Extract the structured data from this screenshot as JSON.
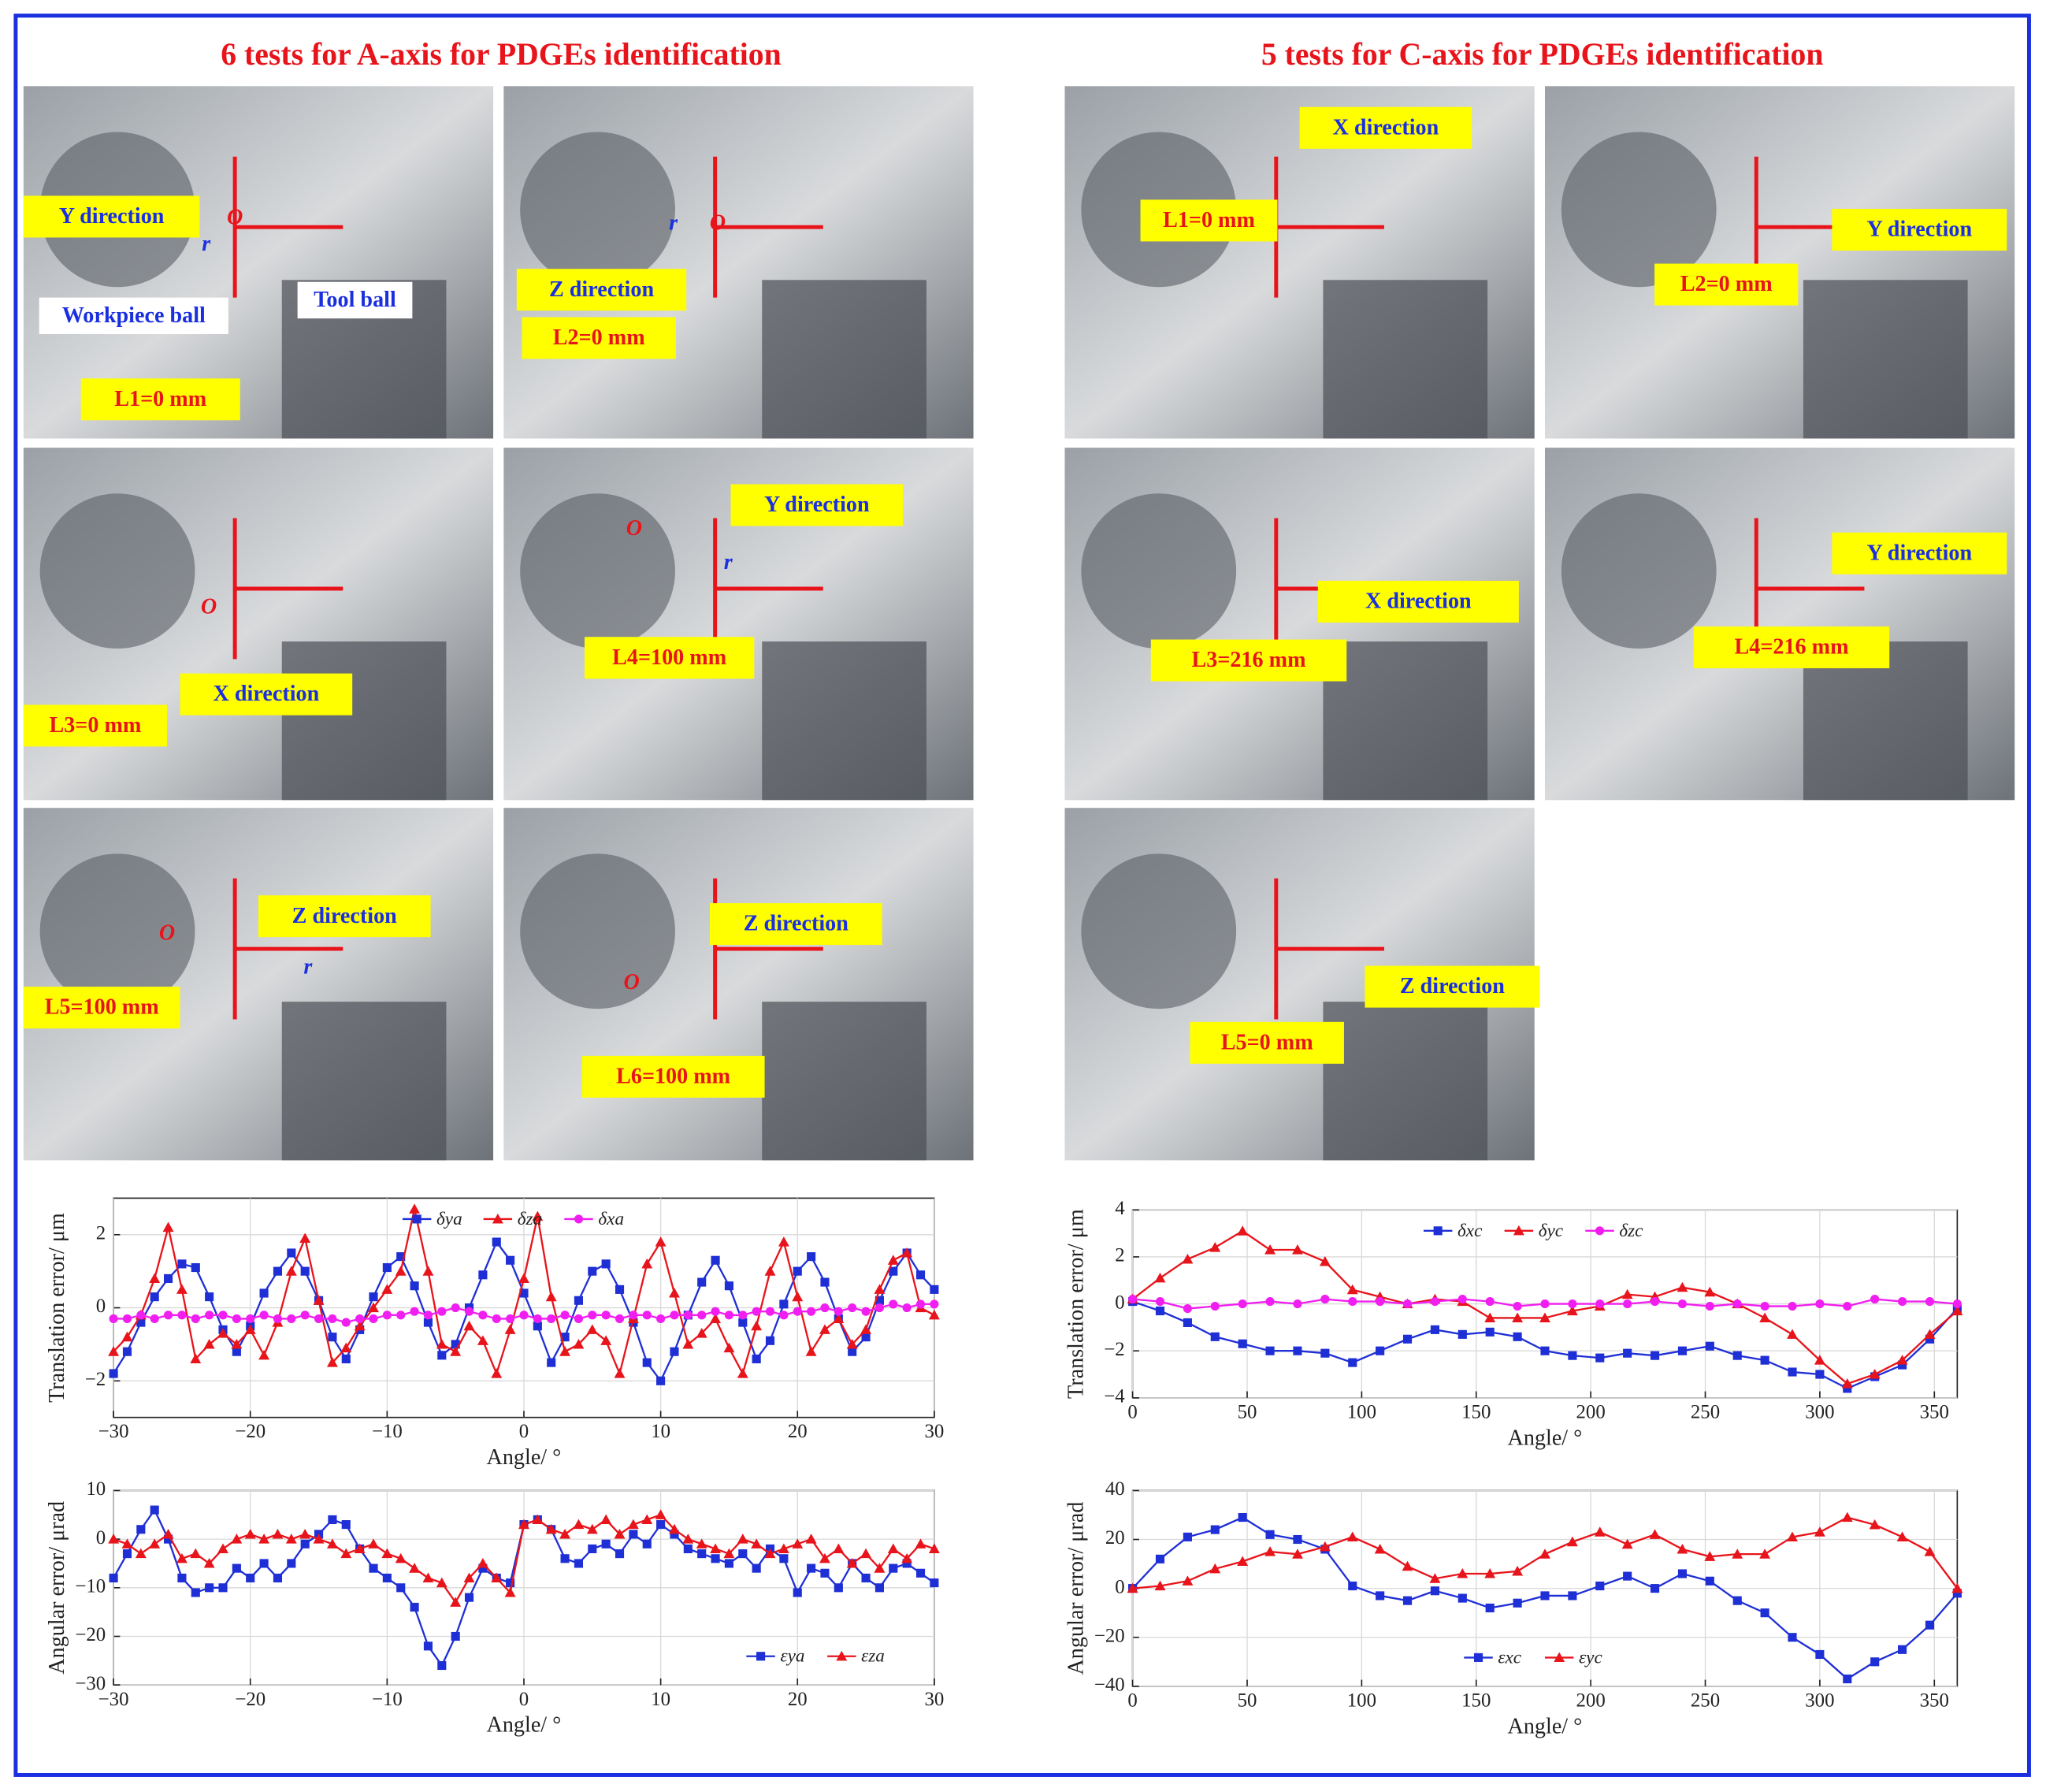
{
  "title_a": "6 tests for A-axis for PDGEs identification",
  "title_c": "5 tests for C-axis for PDGEs identification",
  "photos_a": [
    {
      "labels": [
        "Y direction",
        "Workpiece ball",
        "Tool ball",
        "L1=0 mm",
        "O",
        "r"
      ]
    },
    {
      "labels": [
        "Z direction",
        "L2=0 mm",
        "O",
        "r"
      ]
    },
    {
      "labels": [
        "X direction",
        "L3=0 mm",
        "O"
      ]
    },
    {
      "labels": [
        "Y direction",
        "L4=100 mm",
        "O",
        "r"
      ]
    },
    {
      "labels": [
        "Z direction",
        "L5=100 mm",
        "O",
        "r"
      ]
    },
    {
      "labels": [
        "Z direction",
        "L6=100 mm",
        "O"
      ]
    }
  ],
  "photos_c": [
    {
      "labels": [
        "X direction",
        "L1=0 mm"
      ]
    },
    {
      "labels": [
        "Y direction",
        "L2=0 mm"
      ]
    },
    {
      "labels": [
        "X direction",
        "L3=216 mm"
      ]
    },
    {
      "labels": [
        "Y direction",
        "L4=216 mm"
      ]
    },
    {
      "labels": [
        "Z direction",
        "L5=0 mm"
      ]
    }
  ],
  "chart_data": [
    {
      "type": "line",
      "xlabel": "Angle/ °",
      "ylabel": "Translation error/ μm",
      "grid": true,
      "legend": "upper center",
      "x": [
        -30,
        -29,
        -28,
        -27,
        -26,
        -25,
        -24,
        -23,
        -22,
        -21,
        -20,
        -19,
        -18,
        -17,
        -16,
        -15,
        -14,
        -13,
        -12,
        -11,
        -10,
        -9,
        -8,
        -7,
        -6,
        -5,
        -4,
        -3,
        -2,
        -1,
        0,
        1,
        2,
        3,
        4,
        5,
        6,
        7,
        8,
        9,
        10,
        11,
        12,
        13,
        14,
        15,
        16,
        17,
        18,
        19,
        20,
        21,
        22,
        23,
        24,
        25,
        26,
        27,
        28,
        29,
        30
      ],
      "xlim": [
        -30,
        30
      ],
      "xticks": [
        {
          "value": -30,
          "label": "−30"
        },
        {
          "value": -20,
          "label": "−20"
        },
        {
          "value": -10,
          "label": "−10"
        },
        0,
        10,
        20,
        30
      ],
      "ylim": [
        -3,
        3
      ],
      "yticks": [
        {
          "value": -2,
          "label": "−2"
        },
        0,
        2
      ],
      "series": [
        {
          "name": "δya",
          "color": "#1f2fd6",
          "marker": "square",
          "values": [
            -1.8,
            -1.2,
            -0.4,
            0.3,
            0.8,
            1.2,
            1.1,
            0.3,
            -0.6,
            -1.2,
            -0.5,
            0.4,
            1.0,
            1.5,
            1.0,
            0.2,
            -0.8,
            -1.4,
            -0.6,
            0.3,
            1.1,
            1.4,
            0.6,
            -0.4,
            -1.3,
            -1.0,
            0.0,
            0.9,
            1.8,
            1.3,
            0.4,
            -0.5,
            -1.5,
            -0.8,
            0.2,
            1.0,
            1.2,
            0.5,
            -0.4,
            -1.5,
            -2.0,
            -1.2,
            -0.2,
            0.7,
            1.3,
            0.6,
            -0.4,
            -1.4,
            -0.9,
            0.1,
            1.0,
            1.4,
            0.7,
            -0.3,
            -1.2,
            -0.8,
            0.2,
            1.0,
            1.5,
            0.9,
            0.5
          ]
        },
        {
          "name": "δza",
          "color": "#e8141b",
          "marker": "triangle",
          "values": [
            -1.2,
            -0.8,
            -0.2,
            0.8,
            2.2,
            0.5,
            -1.4,
            -1.0,
            -0.7,
            -1.0,
            -0.6,
            -1.3,
            -0.4,
            1.0,
            1.9,
            0.2,
            -1.5,
            -1.1,
            -0.5,
            0.0,
            0.5,
            1.0,
            2.7,
            1.0,
            -1.0,
            -1.2,
            -0.5,
            -0.9,
            -1.8,
            -0.6,
            0.8,
            2.5,
            0.3,
            -1.2,
            -1.0,
            -0.6,
            -0.9,
            -1.8,
            -0.3,
            1.2,
            1.8,
            0.4,
            -1.0,
            -0.7,
            -0.3,
            -1.1,
            -1.8,
            -0.5,
            1.0,
            1.8,
            0.3,
            -1.2,
            -0.6,
            -0.3,
            -1.0,
            -0.6,
            0.5,
            1.3,
            1.5,
            0.0,
            -0.2
          ]
        },
        {
          "name": "δxa",
          "color": "#f01ef0",
          "marker": "circle",
          "values": [
            -0.3,
            -0.3,
            -0.2,
            -0.3,
            -0.2,
            -0.2,
            -0.3,
            -0.2,
            -0.2,
            -0.3,
            -0.3,
            -0.2,
            -0.3,
            -0.3,
            -0.2,
            -0.3,
            -0.3,
            -0.4,
            -0.3,
            -0.3,
            -0.2,
            -0.2,
            -0.1,
            -0.2,
            -0.1,
            0.0,
            -0.1,
            -0.2,
            -0.3,
            -0.3,
            -0.2,
            -0.3,
            -0.3,
            -0.2,
            -0.3,
            -0.2,
            -0.2,
            -0.3,
            -0.2,
            -0.2,
            -0.3,
            -0.2,
            -0.2,
            -0.2,
            -0.1,
            -0.2,
            -0.2,
            -0.1,
            -0.1,
            -0.2,
            -0.1,
            -0.1,
            0.0,
            -0.1,
            0.0,
            -0.1,
            0.0,
            0.1,
            0.0,
            0.1,
            0.1
          ]
        }
      ]
    },
    {
      "type": "line",
      "xlabel": "Angle/ °",
      "ylabel": "Translation error/ μm",
      "grid": true,
      "legend": "upper center",
      "x": [
        0,
        12,
        24,
        36,
        48,
        60,
        72,
        84,
        96,
        108,
        120,
        132,
        144,
        156,
        168,
        180,
        192,
        204,
        216,
        228,
        240,
        252,
        264,
        276,
        288,
        300,
        312,
        324,
        336,
        348,
        360
      ],
      "xlim": [
        0,
        360
      ],
      "xticks": [
        0,
        50,
        100,
        150,
        200,
        250,
        300,
        350
      ],
      "ylim": [
        -4,
        4
      ],
      "yticks": [
        {
          "value": -4,
          "label": "−4"
        },
        {
          "value": -2,
          "label": "−2"
        },
        0,
        2,
        4
      ],
      "series": [
        {
          "name": "δxc",
          "color": "#1f2fd6",
          "marker": "square",
          "values": [
            0.1,
            -0.3,
            -0.8,
            -1.4,
            -1.7,
            -2.0,
            -2.0,
            -2.1,
            -2.5,
            -2.0,
            -1.5,
            -1.1,
            -1.3,
            -1.2,
            -1.4,
            -2.0,
            -2.2,
            -2.3,
            -2.1,
            -2.2,
            -2.0,
            -1.8,
            -2.2,
            -2.4,
            -2.9,
            -3.0,
            -3.6,
            -3.1,
            -2.6,
            -1.5,
            -0.2
          ]
        },
        {
          "name": "δyc",
          "color": "#e8141b",
          "marker": "triangle",
          "values": [
            0.2,
            1.1,
            1.9,
            2.4,
            3.1,
            2.3,
            2.3,
            1.8,
            0.6,
            0.3,
            0.0,
            0.2,
            0.1,
            -0.6,
            -0.6,
            -0.6,
            -0.3,
            -0.1,
            0.4,
            0.3,
            0.7,
            0.5,
            0.0,
            -0.6,
            -1.3,
            -2.4,
            -3.4,
            -3.0,
            -2.4,
            -1.3,
            -0.3
          ]
        },
        {
          "name": "δzc",
          "color": "#f01ef0",
          "marker": "circle",
          "values": [
            0.2,
            0.1,
            -0.2,
            -0.1,
            0.0,
            0.1,
            0.0,
            0.2,
            0.1,
            0.1,
            0.0,
            0.1,
            0.2,
            0.1,
            -0.1,
            0.0,
            0.0,
            0.0,
            0.0,
            0.1,
            0.0,
            -0.1,
            0.0,
            -0.1,
            -0.1,
            0.0,
            -0.1,
            0.2,
            0.1,
            0.1,
            0.0
          ]
        }
      ]
    },
    {
      "type": "line",
      "xlabel": "Angle/ °",
      "ylabel": "Angular error/ μrad",
      "grid": true,
      "legend": "lower right",
      "x": [
        -30,
        -29,
        -28,
        -27,
        -26,
        -25,
        -24,
        -23,
        -22,
        -21,
        -20,
        -19,
        -18,
        -17,
        -16,
        -15,
        -14,
        -13,
        -12,
        -11,
        -10,
        -9,
        -8,
        -7,
        -6,
        -5,
        -4,
        -3,
        -2,
        -1,
        0,
        1,
        2,
        3,
        4,
        5,
        6,
        7,
        8,
        9,
        10,
        11,
        12,
        13,
        14,
        15,
        16,
        17,
        18,
        19,
        20,
        21,
        22,
        23,
        24,
        25,
        26,
        27,
        28,
        29,
        30
      ],
      "xlim": [
        -30,
        30
      ],
      "xticks": [
        {
          "value": -30,
          "label": "−30"
        },
        {
          "value": -20,
          "label": "−20"
        },
        {
          "value": -10,
          "label": "−10"
        },
        0,
        10,
        20,
        30
      ],
      "ylim": [
        -30,
        10
      ],
      "yticks": [
        {
          "value": -30,
          "label": "−30"
        },
        {
          "value": -20,
          "label": "−20"
        },
        {
          "value": -10,
          "label": "−10"
        },
        0,
        10
      ],
      "series": [
        {
          "name": "εya",
          "color": "#1f2fd6",
          "marker": "square",
          "values": [
            -8,
            -3,
            2,
            6,
            0,
            -8,
            -11,
            -10,
            -10,
            -6,
            -8,
            -5,
            -8,
            -5,
            -1,
            1,
            4,
            3,
            -2,
            -6,
            -8,
            -10,
            -14,
            -22,
            -26,
            -20,
            -12,
            -6,
            -8,
            -9,
            3,
            4,
            2,
            -4,
            -5,
            -2,
            -1,
            -3,
            1,
            -1,
            3,
            1,
            -2,
            -3,
            -4,
            -5,
            -3,
            -6,
            -2,
            -4,
            -11,
            -6,
            -7,
            -10,
            -5,
            -8,
            -10,
            -6,
            -5,
            -7,
            -9
          ]
        },
        {
          "name": "εza",
          "color": "#e8141b",
          "marker": "triangle",
          "values": [
            0,
            -1,
            -3,
            -1,
            1,
            -4,
            -3,
            -5,
            -2,
            0,
            1,
            0,
            1,
            0,
            1,
            0,
            -1,
            -3,
            -2,
            -1,
            -3,
            -4,
            -6,
            -8,
            -9,
            -13,
            -8,
            -5,
            -8,
            -11,
            3,
            4,
            2,
            1,
            3,
            2,
            4,
            1,
            3,
            4,
            5,
            2,
            0,
            -1,
            -2,
            -3,
            0,
            -1,
            -3,
            -2,
            -1,
            0,
            -4,
            -2,
            -5,
            -3,
            -6,
            -2,
            -4,
            -1,
            -2
          ]
        }
      ]
    },
    {
      "type": "line",
      "xlabel": "Angle/ °",
      "ylabel": "Angular error/ μrad",
      "grid": true,
      "legend": "lower center",
      "x": [
        0,
        12,
        24,
        36,
        48,
        60,
        72,
        84,
        96,
        108,
        120,
        132,
        144,
        156,
        168,
        180,
        192,
        204,
        216,
        228,
        240,
        252,
        264,
        276,
        288,
        300,
        312,
        324,
        336,
        348,
        360
      ],
      "xlim": [
        0,
        360
      ],
      "xticks": [
        0,
        50,
        100,
        150,
        200,
        250,
        300,
        350
      ],
      "ylim": [
        -40,
        40
      ],
      "yticks": [
        {
          "value": -40,
          "label": "−40"
        },
        {
          "value": -20,
          "label": "−20"
        },
        0,
        20,
        40
      ],
      "series": [
        {
          "name": "εxc",
          "color": "#1f2fd6",
          "marker": "square",
          "values": [
            0,
            12,
            21,
            24,
            29,
            22,
            20,
            16,
            1,
            -3,
            -5,
            -1,
            -4,
            -8,
            -6,
            -3,
            -3,
            1,
            5,
            0,
            6,
            3,
            -5,
            -10,
            -20,
            -27,
            -37,
            -30,
            -25,
            -15,
            -2
          ]
        },
        {
          "name": "εyc",
          "color": "#e8141b",
          "marker": "triangle",
          "values": [
            0,
            1,
            3,
            8,
            11,
            15,
            14,
            17,
            21,
            16,
            9,
            4,
            6,
            6,
            7,
            14,
            19,
            23,
            18,
            22,
            16,
            13,
            14,
            14,
            21,
            23,
            29,
            26,
            21,
            15,
            0
          ]
        }
      ]
    }
  ]
}
